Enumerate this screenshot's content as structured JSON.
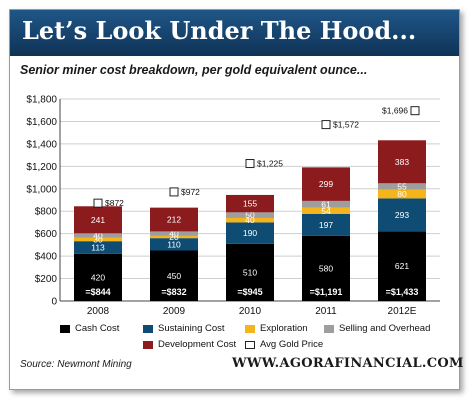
{
  "banner": {
    "title": "Let’s Look Under The Hood..."
  },
  "footer": {
    "source": "Source: Newmont Mining",
    "site": "WWW.AGORAFINANCIAL.COM"
  },
  "colors": {
    "banner": "#1a4a78",
    "cash_cost": "#000000",
    "sustaining_cost": "#0e4c73",
    "exploration": "#f3b51b",
    "selling_overhead": "#9e9e9e",
    "development_cost": "#8c1b1e"
  },
  "chart_data": {
    "type": "bar",
    "stacked": true,
    "title": "Senior miner cost breakdown, per gold equivalent ounce...",
    "xlabel": "",
    "ylabel": "",
    "ylim": [
      0,
      1800
    ],
    "yticks": [
      0,
      200,
      400,
      600,
      800,
      1000,
      1200,
      1400,
      1600,
      1800
    ],
    "ytick_labels": [
      "0",
      "$200",
      "$400",
      "$600",
      "$800",
      "$1,000",
      "$1,200",
      "$1,400",
      "$1,600",
      "$1,800"
    ],
    "grid": true,
    "legend_position": "bottom",
    "categories": [
      "2008",
      "2009",
      "2010",
      "2011",
      "2012E"
    ],
    "series": [
      {
        "name": "Cash Cost",
        "color": "#000000",
        "label_color": "#ffffff",
        "values": [
          420,
          450,
          510,
          580,
          621
        ]
      },
      {
        "name": "Sustaining Cost",
        "color": "#0e4c73",
        "label_color": "#ffffff",
        "values": [
          113,
          110,
          190,
          197,
          293
        ]
      },
      {
        "name": "Exploration",
        "color": "#f3b51b",
        "label_color": "#ffffff",
        "values": [
          30,
          20,
          40,
          54,
          80
        ]
      },
      {
        "name": "Selling and Overhead",
        "color": "#9e9e9e",
        "label_color": "#ffffff",
        "values": [
          40,
          40,
          50,
          61,
          55
        ]
      },
      {
        "name": "Development Cost",
        "color": "#8c1b1e",
        "label_color": "#ffffff",
        "values": [
          241,
          212,
          155,
          299,
          383
        ]
      }
    ],
    "totals": [
      "=$844",
      "=$832",
      "=$945",
      "=$1,191",
      "=$1,433"
    ],
    "gold_price": {
      "name": "Avg Gold Price",
      "values": [
        872,
        972,
        1225,
        1572,
        1696
      ],
      "labels": [
        "$872",
        "$972",
        "$1,225",
        "$1,572",
        "$1,696"
      ]
    }
  }
}
